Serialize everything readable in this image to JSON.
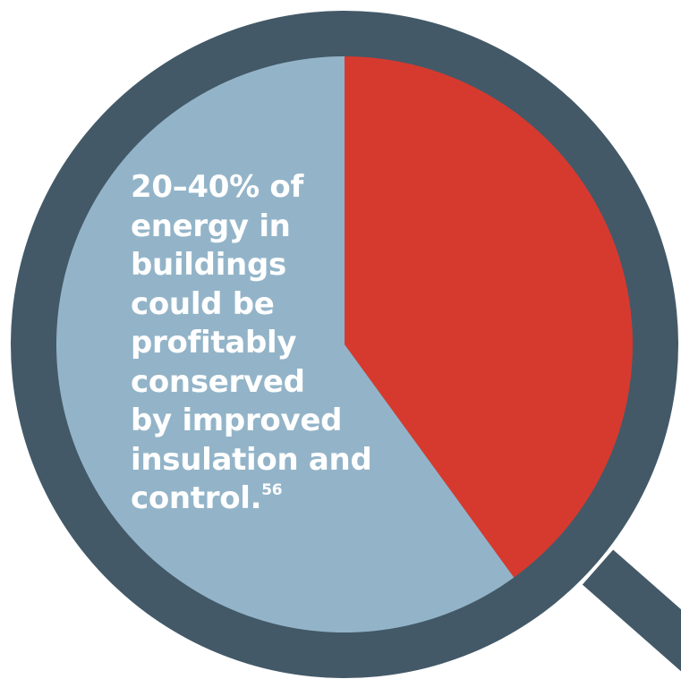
{
  "colors": {
    "lens_ring": "#435968",
    "handle": "#435968",
    "conservable_slice": "#d63a2f",
    "remaining_slice": "#93b4c8",
    "text": "#ffffff"
  },
  "icon": "magnifying-glass-icon",
  "caption": {
    "lines": [
      "20–40% of",
      "energy in",
      "buildings",
      "could be",
      "profitably",
      "conserved",
      "by improved",
      "insulation and",
      "control."
    ],
    "footnote": "56"
  },
  "chart_data": {
    "type": "pie",
    "values": [
      40,
      60
    ],
    "start_angle_deg": 0,
    "direction": "clockwise",
    "legend": "none"
  }
}
